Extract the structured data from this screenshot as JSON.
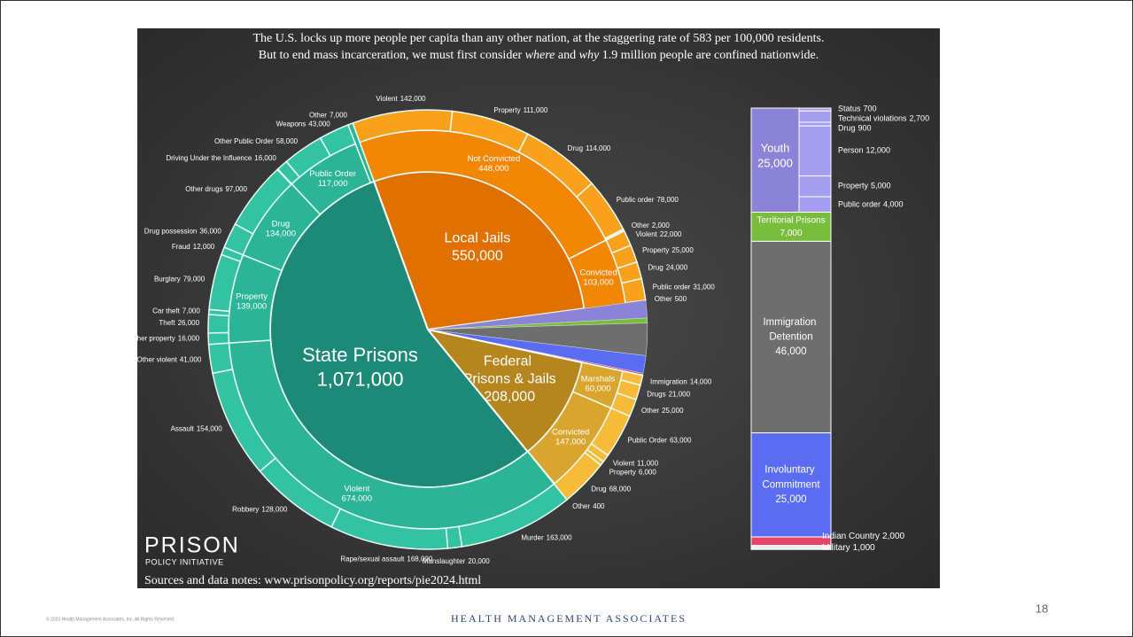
{
  "chart_data": {
    "type": "sunburst",
    "title": "The U.S. locks up more people per capita than any other nation, at the staggering rate of 583 per 100,000 residents.",
    "subtitle_parts": [
      "But to end mass incarceration, we must first consider ",
      "where",
      " and ",
      "why",
      " 1.9 million people are confined nationwide."
    ],
    "systems": [
      {
        "name": "Local Jails",
        "value": 550000,
        "value_label": "550,000",
        "color": "#e07000",
        "ring_color": "#f28705",
        "outer_color": "#f9a11b",
        "groups": [
          {
            "name": "Not Convicted",
            "value": 448000,
            "value_label": "448,000",
            "offenses": [
              {
                "name": "Violent",
                "value": 142000,
                "value_label": "142,000"
              },
              {
                "name": "Property",
                "value": 111000,
                "value_label": "111,000"
              },
              {
                "name": "Drug",
                "value": 114000,
                "value_label": "114,000"
              },
              {
                "name": "Public order",
                "value": 78000,
                "value_label": "78,000"
              },
              {
                "name": "Other",
                "value": 2000,
                "value_label": "2,000"
              }
            ]
          },
          {
            "name": "Convicted",
            "value": 103000,
            "value_label": "103,000",
            "offenses": [
              {
                "name": "Violent",
                "value": 22000,
                "value_label": "22,000"
              },
              {
                "name": "Property",
                "value": 25000,
                "value_label": "25,000"
              },
              {
                "name": "Drug",
                "value": 24000,
                "value_label": "24,000"
              },
              {
                "name": "Public order",
                "value": 31000,
                "value_label": "31,000"
              },
              {
                "name": "Other",
                "value": 500,
                "value_label": "500"
              }
            ]
          }
        ]
      },
      {
        "name": "Youth",
        "value": 25000,
        "value_label": "25,000",
        "color": "#8b84d6",
        "offense_color": "#a49df0",
        "offenses": [
          {
            "name": "Status",
            "value": 700,
            "value_label": "700"
          },
          {
            "name": "Technical violations",
            "value": 2700,
            "value_label": "2,700"
          },
          {
            "name": "Drug",
            "value": 900,
            "value_label": "900"
          },
          {
            "name": "Person",
            "value": 12000,
            "value_label": "12,000"
          },
          {
            "name": "Property",
            "value": 5000,
            "value_label": "5,000"
          },
          {
            "name": "Public order",
            "value": 4000,
            "value_label": "4,000"
          }
        ]
      },
      {
        "name": "Territorial Prisons",
        "value": 7000,
        "value_label": "7,000",
        "color": "#78be3c"
      },
      {
        "name": "Immigration Detention",
        "value": 46000,
        "value_label": "46,000",
        "color": "#6e6e6e"
      },
      {
        "name": "Involuntary Commitment",
        "value": 25000,
        "value_label": "25,000",
        "color": "#5a6cf2"
      },
      {
        "name": "Indian Country",
        "value": 2000,
        "value_label": "2,000",
        "color": "#e8436a"
      },
      {
        "name": "Military",
        "value": 1000,
        "value_label": "1,000",
        "color": "#eeeeee"
      },
      {
        "name": "Federal Prisons & Jails",
        "value": 208000,
        "value_label": "208,000",
        "color": "#b5861e",
        "ring_color": "#d9a52e",
        "outer_color": "#f6bb38",
        "groups": [
          {
            "name": "Marshals",
            "value": 60000,
            "value_label": "60,000",
            "offenses": [
              {
                "name": "Immigration",
                "value": 14000,
                "value_label": "14,000"
              },
              {
                "name": "Drugs",
                "value": 21000,
                "value_label": "21,000"
              },
              {
                "name": "Other",
                "value": 25000,
                "value_label": "25,000"
              }
            ]
          },
          {
            "name": "Convicted",
            "value": 147000,
            "value_label": "147,000",
            "offenses": [
              {
                "name": "Public Order",
                "value": 63000,
                "value_label": "63,000"
              },
              {
                "name": "Violent",
                "value": 11000,
                "value_label": "11,000"
              },
              {
                "name": "Property",
                "value": 6000,
                "value_label": "6,000"
              },
              {
                "name": "Drug",
                "value": 68000,
                "value_label": "68,000"
              },
              {
                "name": "Other",
                "value": 400,
                "value_label": "400"
              }
            ]
          }
        ]
      },
      {
        "name": "State Prisons",
        "value": 1071000,
        "value_label": "1,071,000",
        "color": "#1d8a78",
        "ring_color": "#2bb596",
        "outer_color": "#34c3a2",
        "groups": [
          {
            "name": "Violent",
            "value": 674000,
            "value_label": "674,000",
            "offenses": [
              {
                "name": "Murder",
                "value": 163000,
                "value_label": "163,000"
              },
              {
                "name": "Manslaughter",
                "value": 20000,
                "value_label": "20,000"
              },
              {
                "name": "Rape/sexual assault",
                "value": 168000,
                "value_label": "168,000"
              },
              {
                "name": "Robbery",
                "value": 128000,
                "value_label": "128,000"
              },
              {
                "name": "Assault",
                "value": 154000,
                "value_label": "154,000"
              },
              {
                "name": "Other violent",
                "value": 41000,
                "value_label": "41,000"
              }
            ]
          },
          {
            "name": "Property",
            "value": 139000,
            "value_label": "139,000",
            "offenses": [
              {
                "name": "Other property",
                "value": 16000,
                "value_label": "16,000"
              },
              {
                "name": "Theft",
                "value": 26000,
                "value_label": "26,000"
              },
              {
                "name": "Car theft",
                "value": 7000,
                "value_label": "7,000"
              },
              {
                "name": "Burglary",
                "value": 79000,
                "value_label": "79,000"
              },
              {
                "name": "Fraud",
                "value": 12000,
                "value_label": "12,000"
              }
            ]
          },
          {
            "name": "Drug",
            "value": 134000,
            "value_label": "134,000",
            "offenses": [
              {
                "name": "Drug possession",
                "value": 36000,
                "value_label": "36,000"
              },
              {
                "name": "Other drugs",
                "value": 97000,
                "value_label": "97,000"
              }
            ]
          },
          {
            "name": "Public Order",
            "value": 117000,
            "value_label": "117,000",
            "offenses": [
              {
                "name": "Driving Under the Influence",
                "value": 16000,
                "value_label": "16,000"
              },
              {
                "name": "Other Public Order",
                "value": 58000,
                "value_label": "58,000"
              },
              {
                "name": "Weapons",
                "value": 43000,
                "value_label": "43,000"
              }
            ]
          },
          {
            "name": "Other",
            "value": 7000,
            "value_label": "7,000"
          }
        ]
      }
    ]
  },
  "logo": {
    "name": "PRISON",
    "subname": "POLICY INITIATIVE"
  },
  "source": "Sources and data notes: www.prisonpolicy.org/reports/pie2024.html",
  "footer": {
    "copyright": "© 2023 Health Management Associates, Inc. All Rights Reserved.",
    "brand": "HEALTH MANAGEMENT ASSOCIATES",
    "page_number": 18
  }
}
